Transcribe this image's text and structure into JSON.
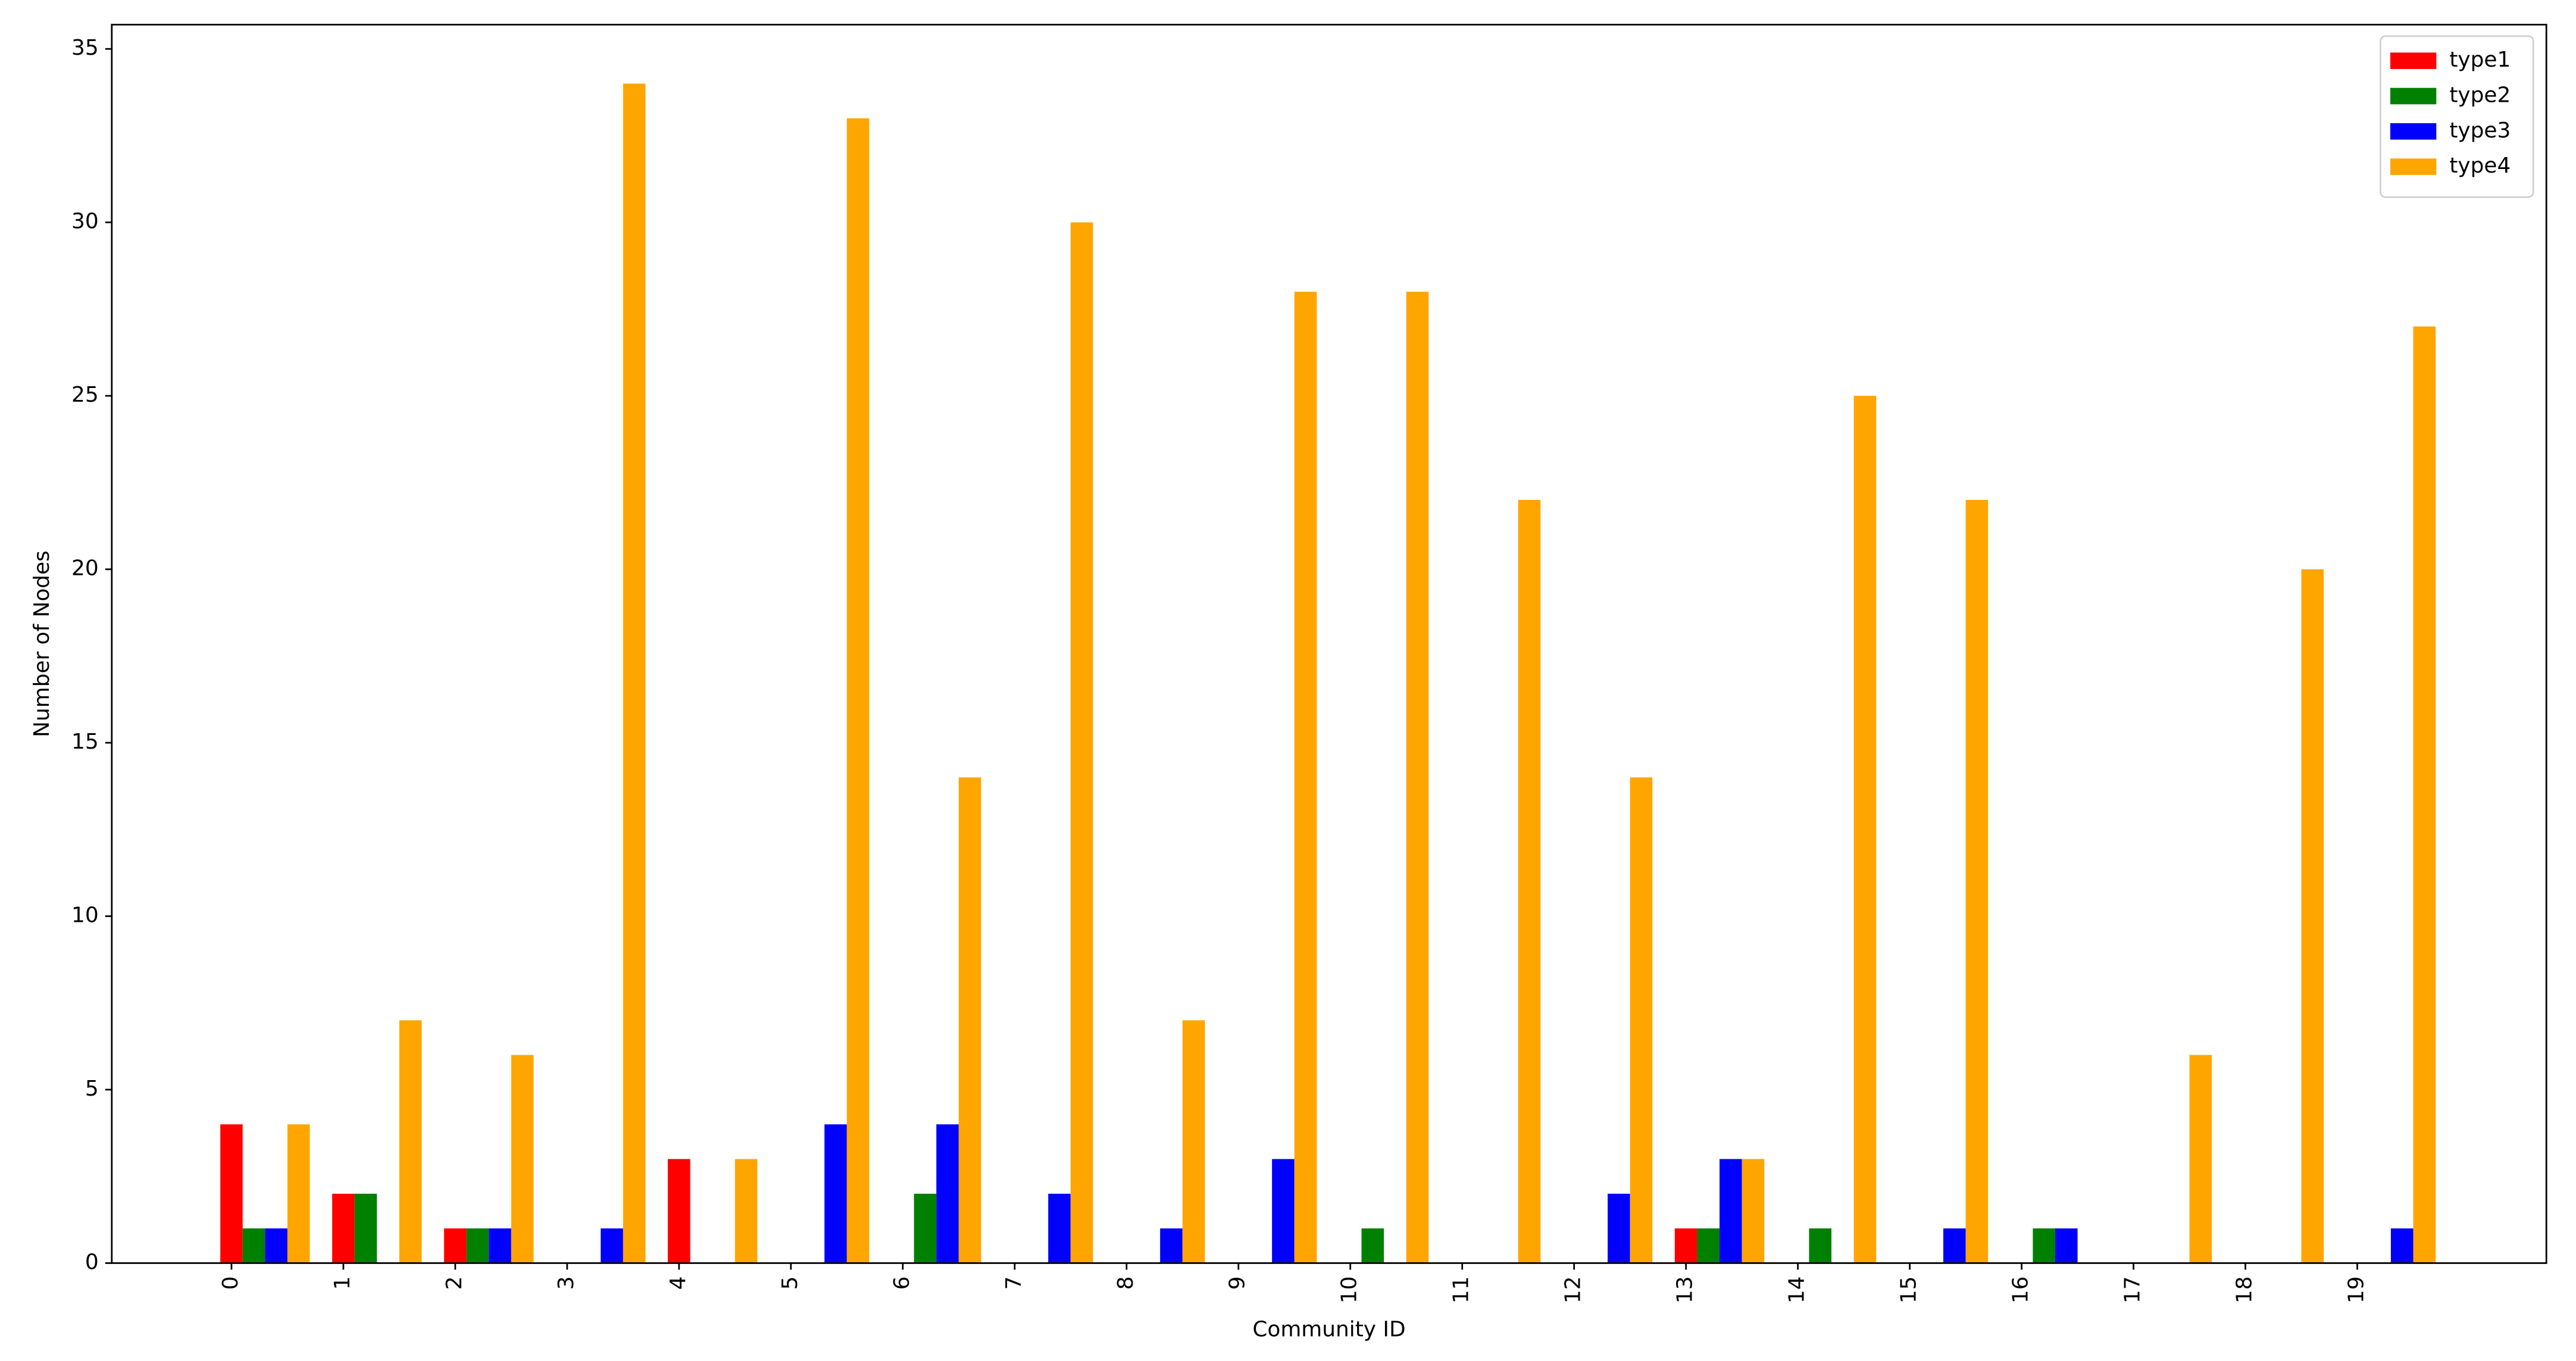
{
  "chart_data": {
    "type": "bar",
    "x_label": "Community ID",
    "y_label": "Number of Nodes",
    "categories": [
      "0",
      "1",
      "2",
      "3",
      "4",
      "5",
      "6",
      "7",
      "8",
      "9",
      "10",
      "11",
      "12",
      "13",
      "14",
      "15",
      "16",
      "17",
      "18",
      "19"
    ],
    "series": [
      {
        "name": "type1",
        "color": "#ff0000",
        "values": [
          4,
          2,
          1,
          0,
          3,
          0,
          0,
          0,
          0,
          0,
          0,
          0,
          0,
          1,
          0,
          0,
          0,
          0,
          0,
          0
        ]
      },
      {
        "name": "type2",
        "color": "#008000",
        "values": [
          1,
          2,
          1,
          0,
          0,
          0,
          2,
          0,
          0,
          0,
          1,
          0,
          0,
          1,
          1,
          0,
          1,
          0,
          0,
          0
        ]
      },
      {
        "name": "type3",
        "color": "#0000ff",
        "values": [
          1,
          0,
          1,
          1,
          0,
          4,
          4,
          2,
          1,
          3,
          0,
          0,
          2,
          3,
          0,
          1,
          1,
          0,
          0,
          1
        ]
      },
      {
        "name": "type4",
        "color": "#ffa500",
        "values": [
          4,
          7,
          6,
          34,
          3,
          33,
          14,
          30,
          7,
          28,
          28,
          22,
          14,
          3,
          25,
          22,
          0,
          6,
          20,
          27
        ]
      }
    ],
    "xlim": [
      -1.07,
      20.69
    ],
    "ylim": [
      0,
      35.7
    ],
    "yticks": [
      0,
      5,
      10,
      15,
      20,
      25,
      30,
      35
    ],
    "legend": "upper right"
  }
}
